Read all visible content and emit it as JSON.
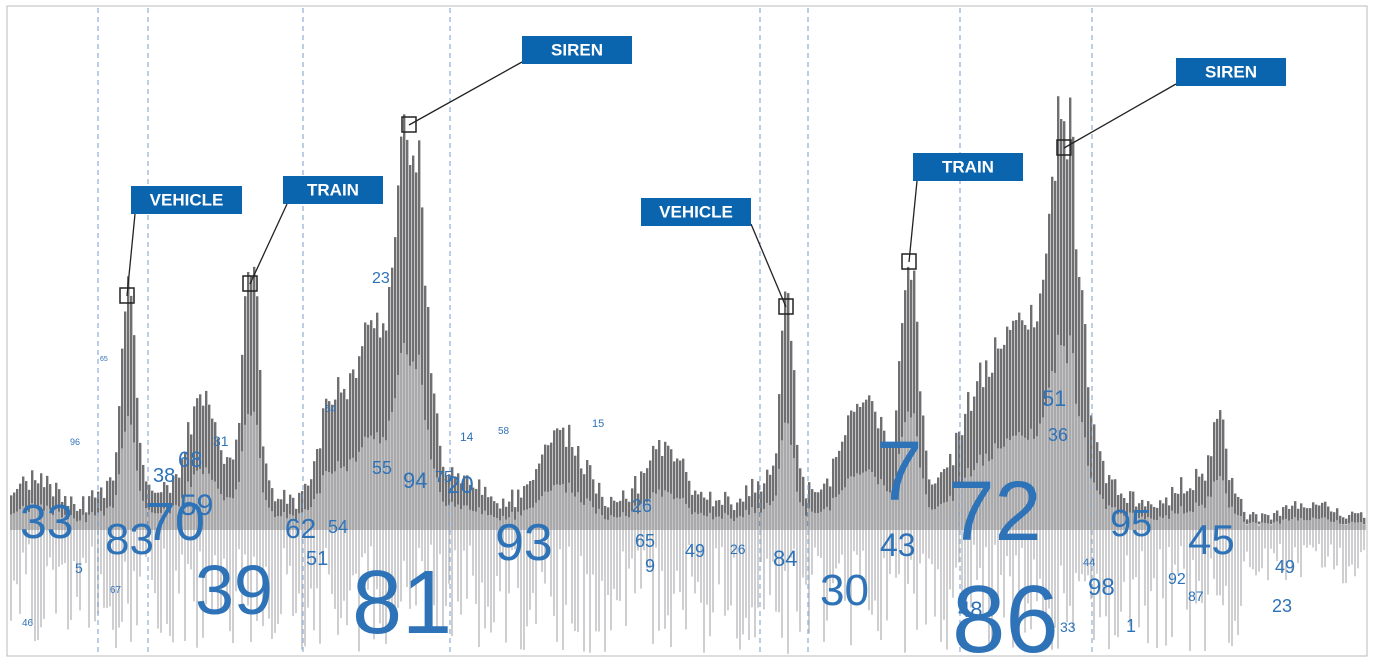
{
  "labels": [
    "VEHICLE",
    "TRAIN",
    "SIREN",
    "VEHICLE",
    "TRAIN",
    "SIREN"
  ],
  "numbers": [
    "33",
    "83",
    "70",
    "59",
    "68",
    "38",
    "31",
    "39",
    "81",
    "23",
    "54",
    "55",
    "94",
    "75",
    "20",
    "14",
    "58",
    "15",
    "62",
    "54",
    "51",
    "93",
    "26",
    "65",
    "9",
    "49",
    "26",
    "84",
    "30",
    "7",
    "43",
    "72",
    "86",
    "48",
    "51",
    "36",
    "98",
    "44",
    "95",
    "45",
    "92",
    "87",
    "1",
    "33",
    "49",
    "23",
    "5",
    "67",
    "46",
    "96",
    "65"
  ]
}
